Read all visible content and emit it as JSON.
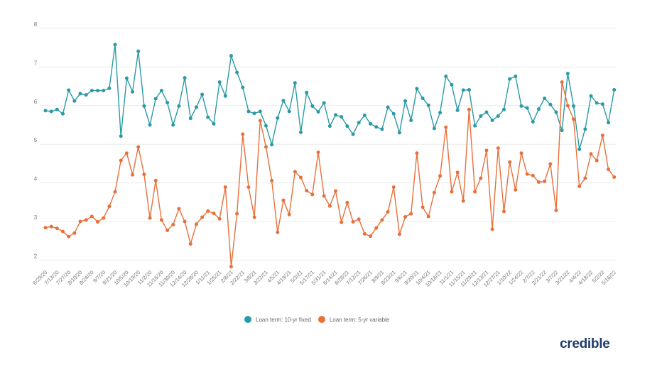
{
  "chart_data": {
    "type": "line",
    "title": "",
    "xlabel": "",
    "ylabel": "",
    "ylim": [
      2,
      8
    ],
    "yticks": [
      "2",
      "3",
      "4",
      "5",
      "6",
      "7",
      "8"
    ],
    "grid": true,
    "legend_position": "bottom",
    "x": [
      "6/29/20",
      "7/6/20",
      "7/13/20",
      "7/20/20",
      "7/27/20",
      "8/3/20",
      "8/10/20",
      "8/17/20",
      "8/24/20",
      "8/31/20",
      "9/7/20",
      "9/14/20",
      "9/21/20",
      "9/28/20",
      "10/5/20",
      "10/12/20",
      "10/19/20",
      "10/26/20",
      "11/2/20",
      "11/9/20",
      "11/16/20",
      "11/23/20",
      "11/30/20",
      "12/7/20",
      "12/14/20",
      "12/21/20",
      "12/28/20",
      "1/4/21",
      "1/11/21",
      "1/18/21",
      "1/25/21",
      "2/1/21",
      "2/8/21",
      "2/15/21",
      "2/22/21",
      "3/1/21",
      "3/8/21",
      "3/15/21",
      "3/22/21",
      "3/29/21",
      "4/5/21",
      "4/12/21",
      "4/19/21",
      "4/26/21",
      "5/3/21",
      "5/10/21",
      "5/17/21",
      "5/24/21",
      "5/31/21",
      "6/7/21",
      "6/14/21",
      "6/21/21",
      "6/28/21",
      "7/5/21",
      "7/12/21",
      "7/19/21",
      "7/26/21",
      "8/2/21",
      "8/9/21",
      "8/16/21",
      "8/23/21",
      "8/30/21",
      "9/6/21",
      "9/13/21",
      "9/20/21",
      "9/27/21",
      "10/4/21",
      "10/11/21",
      "10/18/21",
      "10/25/21",
      "11/1/21",
      "11/8/21",
      "11/15/21",
      "11/22/21",
      "11/29/21",
      "12/6/21",
      "12/13/21",
      "12/20/21",
      "12/27/21",
      "1/3/22",
      "1/10/22",
      "1/17/22",
      "1/24/22",
      "1/31/22",
      "2/7/22",
      "2/14/22",
      "2/21/22",
      "2/28/22",
      "3/7/22",
      "3/14/22",
      "3/21/22",
      "3/28/22",
      "4/4/22",
      "4/11/22",
      "4/18/22",
      "4/25/22",
      "5/2/22",
      "5/9/22",
      "5/16/22"
    ],
    "tick_every": 2,
    "series": [
      {
        "name": "Loan term: 10-yr fixed",
        "color": "#2a9aa5",
        "values": [
          5.87,
          5.85,
          5.9,
          5.79,
          6.4,
          6.12,
          6.31,
          6.28,
          6.39,
          6.39,
          6.39,
          6.45,
          7.58,
          5.21,
          6.71,
          6.36,
          7.41,
          5.99,
          5.5,
          6.18,
          6.39,
          6.08,
          5.5,
          5.99,
          6.72,
          5.67,
          5.96,
          6.29,
          5.7,
          5.53,
          6.61,
          6.25,
          7.29,
          6.86,
          6.47,
          5.85,
          5.8,
          5.85,
          5.48,
          4.99,
          5.68,
          6.13,
          5.85,
          6.59,
          5.31,
          6.34,
          5.99,
          5.84,
          6.07,
          5.47,
          5.76,
          5.71,
          5.47,
          5.26,
          5.56,
          5.75,
          5.53,
          5.45,
          5.39,
          5.96,
          5.79,
          5.3,
          6.12,
          5.62,
          6.44,
          6.19,
          6.01,
          5.41,
          5.82,
          6.76,
          6.54,
          5.88,
          6.4,
          6.41,
          5.48,
          5.73,
          5.83,
          5.62,
          5.73,
          5.9,
          6.69,
          6.76,
          5.99,
          5.94,
          5.58,
          5.91,
          6.19,
          6.03,
          5.83,
          5.36,
          6.83,
          5.99,
          4.87,
          5.39,
          6.25,
          6.07,
          6.04,
          5.56,
          6.41
        ]
      },
      {
        "name": "Loan term: 5-yr variable",
        "color": "#e8703a",
        "values": [
          2.84,
          2.87,
          2.82,
          2.74,
          2.61,
          2.7,
          3.0,
          3.04,
          3.13,
          2.99,
          3.09,
          3.39,
          3.77,
          4.58,
          4.77,
          4.21,
          4.93,
          4.22,
          3.09,
          4.06,
          3.04,
          2.77,
          2.92,
          3.33,
          3.0,
          2.42,
          2.93,
          3.11,
          3.27,
          3.21,
          3.07,
          3.89,
          1.83,
          3.2,
          5.26,
          3.89,
          3.11,
          5.61,
          4.93,
          4.06,
          2.72,
          3.55,
          3.18,
          4.29,
          4.14,
          3.8,
          3.7,
          4.79,
          3.66,
          3.4,
          3.79,
          2.98,
          3.49,
          2.99,
          3.06,
          2.68,
          2.62,
          2.83,
          3.04,
          3.25,
          3.89,
          2.67,
          3.12,
          3.2,
          4.77,
          3.37,
          3.13,
          3.75,
          4.18,
          5.44,
          3.77,
          4.27,
          3.53,
          5.9,
          3.77,
          4.12,
          4.84,
          2.8,
          4.9,
          3.26,
          4.54,
          3.82,
          4.77,
          4.23,
          4.19,
          4.02,
          4.04,
          4.49,
          3.29,
          6.61,
          6.0,
          5.65,
          3.91,
          4.12,
          4.75,
          4.58,
          5.23,
          4.35,
          4.15
        ]
      }
    ]
  },
  "brand": {
    "logo_text": "credible",
    "color": "#1f3a6e"
  }
}
